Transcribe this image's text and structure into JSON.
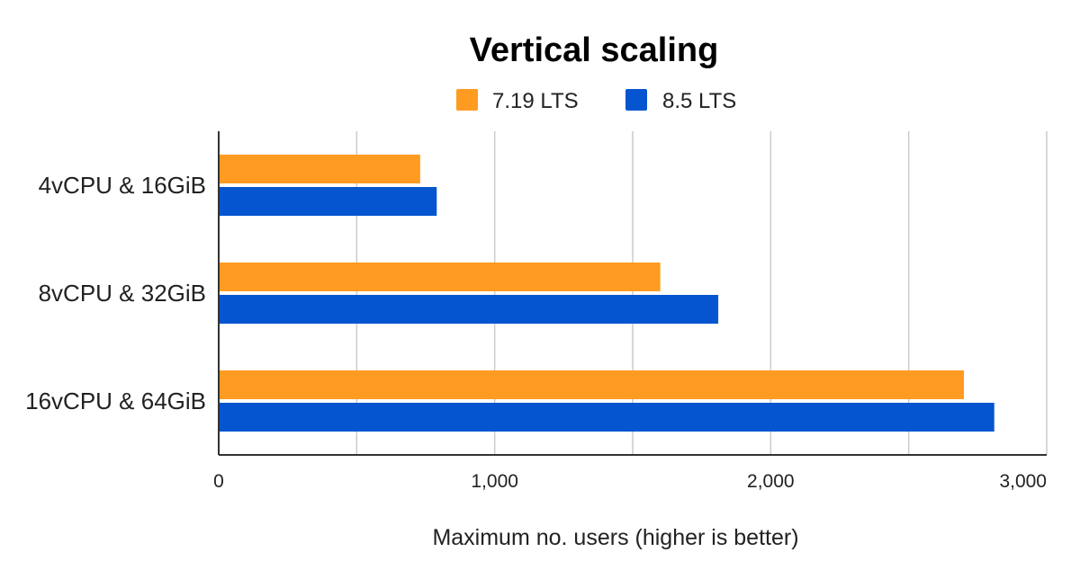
{
  "chart_data": {
    "type": "bar",
    "orientation": "horizontal",
    "title": "Vertical scaling",
    "xlabel": "Maximum no. users (higher is better)",
    "ylabel": "",
    "categories": [
      "4vCPU & 16GiB",
      "8vCPU & 32GiB",
      "16vCPU & 64GiB"
    ],
    "series": [
      {
        "name": "7.19 LTS",
        "color": "#ff9b21",
        "values": [
          730,
          1600,
          2700
        ]
      },
      {
        "name": "8.5 LTS",
        "color": "#0455cf",
        "values": [
          790,
          1810,
          2810
        ]
      }
    ],
    "xlim": [
      0,
      3000
    ],
    "ticks": [
      0,
      1000,
      2000,
      3000
    ],
    "tick_labels": [
      "0",
      "1,000",
      "2,000",
      "3,000"
    ],
    "minor_gridlines": true,
    "legend_position": "top"
  }
}
